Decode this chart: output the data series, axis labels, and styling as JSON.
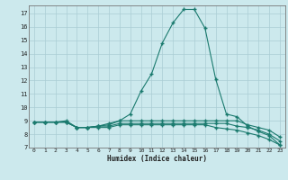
{
  "xlabel": "Humidex (Indice chaleur)",
  "bg_color": "#cce9ed",
  "line_color": "#1a7a6e",
  "grid_color": "#aacdd4",
  "xlim": [
    -0.5,
    23.5
  ],
  "ylim": [
    7,
    17.6
  ],
  "xticks": [
    0,
    1,
    2,
    3,
    4,
    5,
    6,
    7,
    8,
    9,
    10,
    11,
    12,
    13,
    14,
    15,
    16,
    17,
    18,
    19,
    20,
    21,
    22,
    23
  ],
  "yticks": [
    7,
    8,
    9,
    10,
    11,
    12,
    13,
    14,
    15,
    16,
    17
  ],
  "lines": [
    {
      "x": [
        0,
        1,
        2,
        3,
        4,
        5,
        6,
        7,
        8,
        9,
        10,
        11,
        12,
        13,
        14,
        15,
        16,
        17,
        18,
        19,
        20,
        21,
        22,
        23
      ],
      "y": [
        8.9,
        8.9,
        8.9,
        9.0,
        8.5,
        8.5,
        8.6,
        8.8,
        9.0,
        9.5,
        11.2,
        12.5,
        14.8,
        16.3,
        17.3,
        17.3,
        15.9,
        12.1,
        9.5,
        9.3,
        8.6,
        8.2,
        7.9,
        7.2
      ]
    },
    {
      "x": [
        0,
        1,
        2,
        3,
        4,
        5,
        6,
        7,
        8,
        9,
        10,
        11,
        12,
        13,
        14,
        15,
        16,
        17,
        18,
        19,
        20,
        21,
        22,
        23
      ],
      "y": [
        8.9,
        8.9,
        8.9,
        8.9,
        8.5,
        8.5,
        8.6,
        8.7,
        9.0,
        9.0,
        9.0,
        9.0,
        9.0,
        9.0,
        9.0,
        9.0,
        9.0,
        9.0,
        9.0,
        9.0,
        8.7,
        8.5,
        8.3,
        7.8
      ]
    },
    {
      "x": [
        0,
        1,
        2,
        3,
        4,
        5,
        6,
        7,
        8,
        9,
        10,
        11,
        12,
        13,
        14,
        15,
        16,
        17,
        18,
        19,
        20,
        21,
        22,
        23
      ],
      "y": [
        8.9,
        8.9,
        8.9,
        8.9,
        8.5,
        8.5,
        8.6,
        8.6,
        8.8,
        8.8,
        8.8,
        8.8,
        8.8,
        8.8,
        8.8,
        8.8,
        8.8,
        8.8,
        8.8,
        8.6,
        8.5,
        8.3,
        8.0,
        7.5
      ]
    },
    {
      "x": [
        0,
        1,
        2,
        3,
        4,
        5,
        6,
        7,
        8,
        9,
        10,
        11,
        12,
        13,
        14,
        15,
        16,
        17,
        18,
        19,
        20,
        21,
        22,
        23
      ],
      "y": [
        8.9,
        8.9,
        8.9,
        8.9,
        8.5,
        8.5,
        8.5,
        8.5,
        8.7,
        8.7,
        8.7,
        8.7,
        8.7,
        8.7,
        8.7,
        8.7,
        8.7,
        8.5,
        8.4,
        8.3,
        8.1,
        7.9,
        7.6,
        7.2
      ]
    }
  ]
}
